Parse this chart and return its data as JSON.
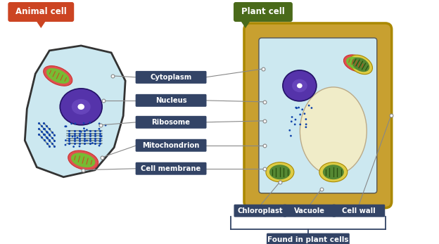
{
  "bg_color": "#ffffff",
  "animal_cell_label": "Animal cell",
  "plant_cell_label": "Plant cell",
  "animal_label_bg": "#cc4422",
  "plant_label_bg": "#4a6a1a",
  "label_text_color": "#ffffff",
  "cell_fill": "#cce8f0",
  "cell_outline": "#333333",
  "plant_wall_outer": "#c8a030",
  "plant_wall_fill": "#d4b040",
  "nucleus_color": "#5533aa",
  "nucleus_light": "#7755cc",
  "vacuole_color": "#f0ecc8",
  "mito_outer": "#e05050",
  "mito_inner": "#77bb33",
  "mito_stripe": "#cc3333",
  "chloro_outer": "#ddcc44",
  "chloro_inner": "#558833",
  "chloro_stripe": "#3a6a20",
  "ribosome_color": "#1144aa",
  "er_color": "#778899",
  "label_box_color": "#334466",
  "label_text": [
    "Cytoplasm",
    "Nucleus",
    "Ribosome",
    "Mitochondrion",
    "Cell membrane"
  ],
  "bottom_labels": [
    "Chloroplast",
    "Vacuole",
    "Cell wall"
  ],
  "bottom_note": "Found in plant cells",
  "line_color": "#888888",
  "dot_color": "#ffffff"
}
